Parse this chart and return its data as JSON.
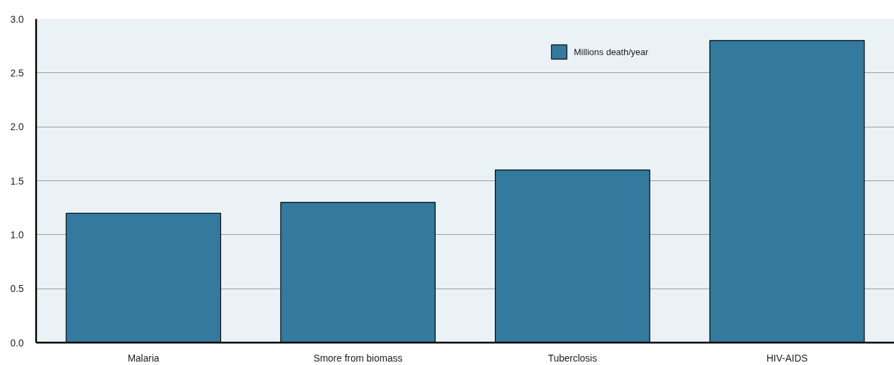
{
  "chart_data": {
    "type": "bar",
    "categories": [
      "Malaria",
      "Smore from biomass",
      "Tuberclosis",
      "HIV-AIDS"
    ],
    "series": [
      {
        "name": "Millions death/year",
        "color": "#337a9e",
        "values": [
          1.2,
          1.3,
          1.6,
          2.8
        ]
      }
    ],
    "ylim": [
      0,
      3
    ],
    "yticks": [
      {
        "value": 0,
        "label": "0.0"
      },
      {
        "value": 0.5,
        "label": "0.5"
      },
      {
        "value": 1,
        "label": "1.0"
      },
      {
        "value": 1.5,
        "label": "1.5"
      },
      {
        "value": 2,
        "label": "2.0"
      },
      {
        "value": 2.5,
        "label": "2.5"
      },
      {
        "value": 3,
        "label": "3.0"
      }
    ],
    "grid": "y",
    "legend": "top right"
  }
}
